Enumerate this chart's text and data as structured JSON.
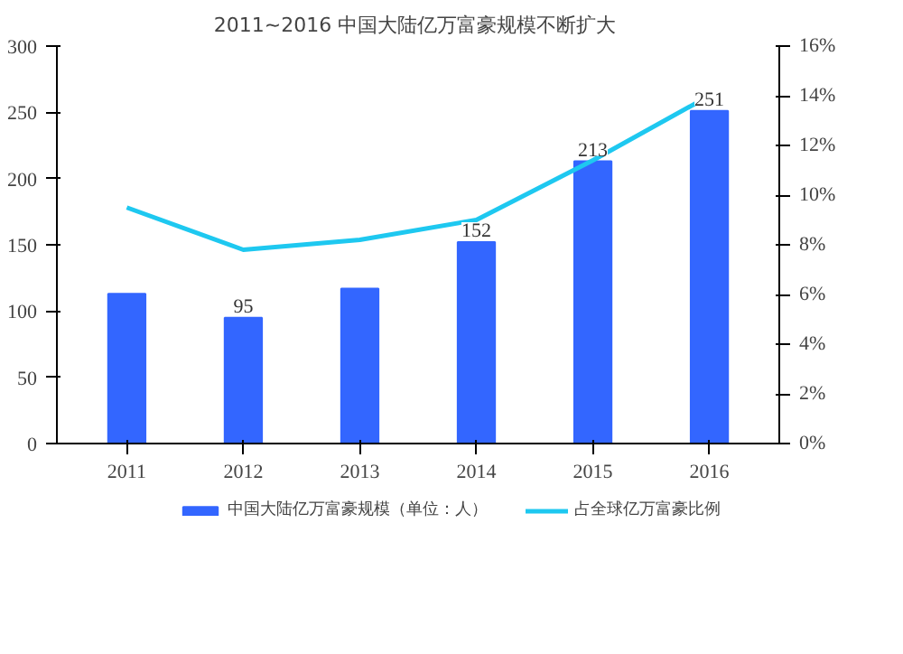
{
  "chart_data": {
    "type": "bar",
    "title": "2011~2016  中国大陆亿万富豪规模不断扩大",
    "categories": [
      "2011",
      "2012",
      "2013",
      "2014",
      "2015",
      "2016"
    ],
    "series": [
      {
        "name": "中国大陆亿万富豪规模（单位：人）",
        "color": "#3366ff",
        "values": [
          113,
          95,
          117,
          152,
          213,
          251
        ],
        "value_labels": [
          null,
          "95",
          null,
          "152",
          "213",
          "251"
        ]
      },
      {
        "name": "占全球亿万富豪比例",
        "type": "line",
        "axis": "y2",
        "color": "#1ec8f0",
        "values": [
          9.5,
          7.8,
          8.2,
          9.0,
          11.4,
          14.0
        ]
      }
    ],
    "ylim": [
      0,
      300
    ],
    "yticks": [
      0,
      50,
      100,
      150,
      200,
      250,
      300
    ],
    "y2lim": [
      0,
      16
    ],
    "y2ticks": [
      {
        "value": 0,
        "label": "0%"
      },
      {
        "value": 2,
        "label": "2%"
      },
      {
        "value": 4,
        "label": "4%"
      },
      {
        "value": 6,
        "label": "6%"
      },
      {
        "value": 8,
        "label": "8%"
      },
      {
        "value": 10,
        "label": "10%"
      },
      {
        "value": 12,
        "label": "12%"
      },
      {
        "value": 14,
        "label": "14%"
      },
      {
        "value": 16,
        "label": "16%"
      }
    ],
    "grid": false,
    "legend": "bottom"
  }
}
